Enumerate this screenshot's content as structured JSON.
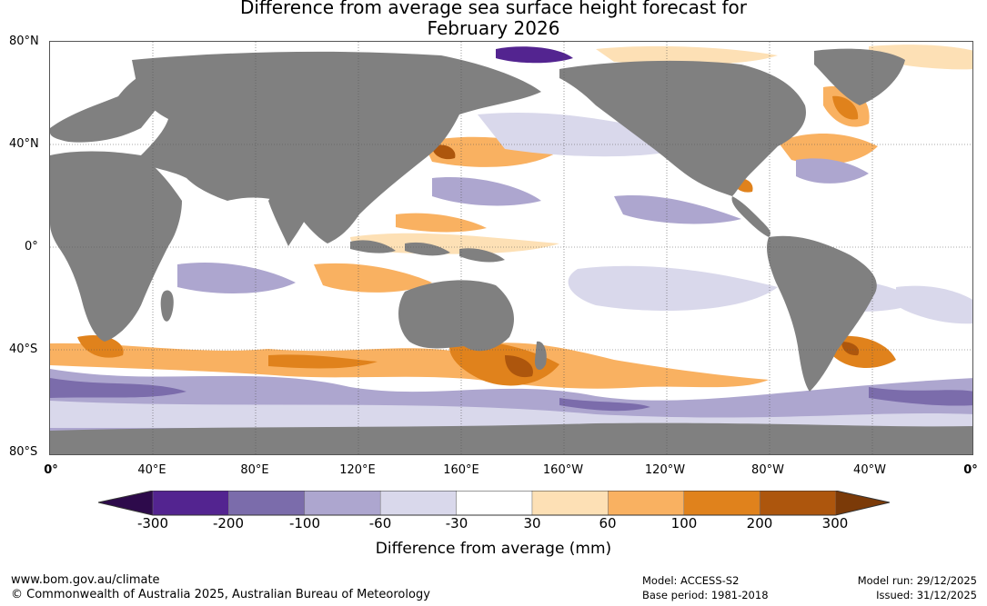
{
  "title": {
    "line1": "Difference from average sea surface height forecast for",
    "line2": "February 2026"
  },
  "map": {
    "description": "Global map of sea surface height anomaly",
    "lat_labels": [
      "80°N",
      "40°N",
      "0°",
      "40°S",
      "80°S"
    ],
    "lon_labels": [
      "0°",
      "40°E",
      "80°E",
      "120°E",
      "160°E",
      "160°W",
      "120°W",
      "80°W",
      "40°W",
      "0°"
    ],
    "land_color": "#808080",
    "ocean_color": "#ffffff"
  },
  "colorbar": {
    "ticks": [
      "-300",
      "-200",
      "-100",
      "-60",
      "-30",
      "30",
      "60",
      "100",
      "200",
      "300"
    ],
    "colors": {
      "below": "#2d0a4b",
      "bins": [
        "#532490",
        "#7b6cab",
        "#ada6cf",
        "#d9d8eb",
        "#ffffff",
        "#fde0b5",
        "#f9b161",
        "#e0821c",
        "#ad560d"
      ],
      "above": "#7b3a08"
    },
    "label": "Difference from average (mm)"
  },
  "footer": {
    "website": "www.bom.gov.au/climate",
    "copyright": "© Commonwealth of Australia 2025, Australian Bureau of Meteorology",
    "model": "Model: ACCESS-S2",
    "base_period": "Base period: 1981-2018",
    "model_run": "Model run: 29/12/2025",
    "issued": "Issued: 31/12/2025"
  }
}
